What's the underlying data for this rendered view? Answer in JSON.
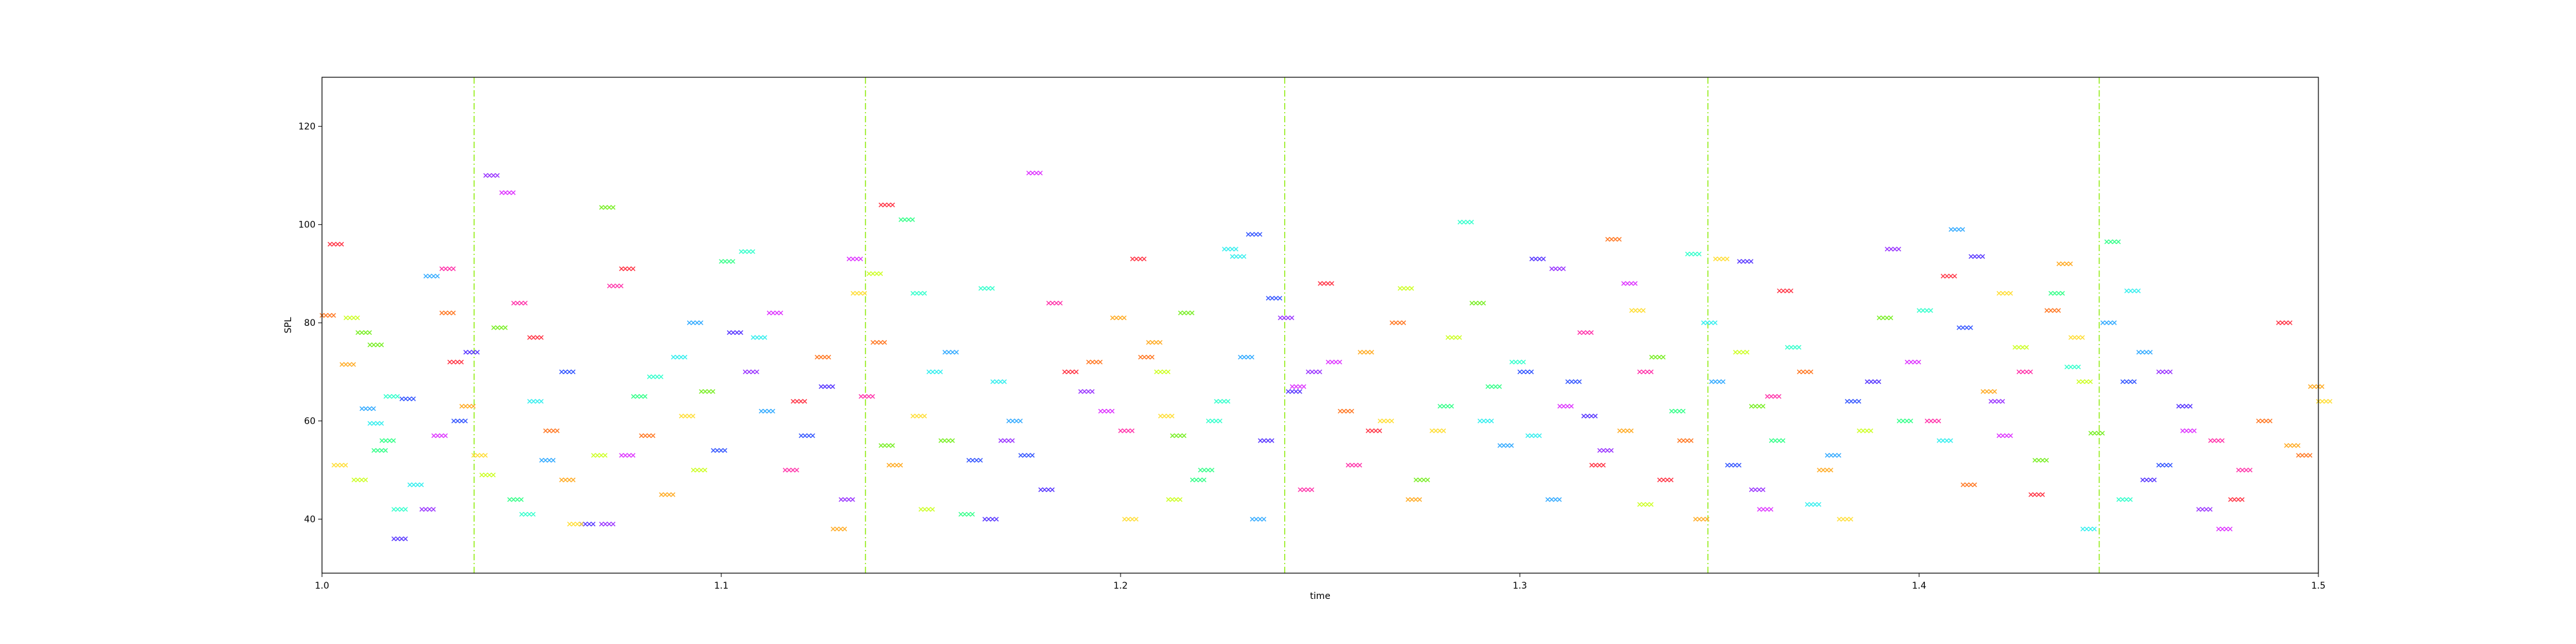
{
  "chart_data": {
    "type": "scatter",
    "marker": "x",
    "xlabel": "time",
    "ylabel": "SPL",
    "xlim": [
      1.0,
      1.5
    ],
    "ylim": [
      29,
      130
    ],
    "x_ticks": [
      1.0,
      1.1,
      1.2,
      1.3,
      1.4,
      1.5
    ],
    "x_tick_labels": [
      "1.0",
      "1.1",
      "1.2",
      "1.3",
      "1.4",
      "1.5"
    ],
    "y_ticks": [
      40,
      60,
      80,
      100,
      120
    ],
    "y_tick_labels": [
      "40",
      "60",
      "80",
      "100",
      "120"
    ],
    "grid": false,
    "legend": "none",
    "vertical_lines": {
      "x": [
        1.0381,
        1.1361,
        1.2411,
        1.3471,
        1.4451
      ],
      "color": "#99ee22",
      "style": "dash-dot"
    },
    "palette": [
      "#ff3344",
      "#ff7722",
      "#ffaa22",
      "#ffdd33",
      "#ccff22",
      "#77ee22",
      "#33ff88",
      "#33ffcc",
      "#33eeee",
      "#33aaff",
      "#3355ff",
      "#5533ff",
      "#9933ff",
      "#dd33ff",
      "#ff33aa"
    ],
    "series": [
      {
        "points": [
          [
            1.002,
            96
          ],
          [
            1.0,
            81.5
          ],
          [
            1.005,
            71.5
          ],
          [
            1.003,
            51
          ],
          [
            1.008,
            48
          ],
          [
            1.012,
            75.5
          ],
          [
            1.015,
            56
          ],
          [
            1.018,
            42
          ],
          [
            1.012,
            59.5
          ],
          [
            1.01,
            62.5
          ],
          [
            1.02,
            64.5
          ],
          [
            1.018,
            36
          ],
          [
            1.025,
            42
          ],
          [
            1.028,
            57
          ],
          [
            1.03,
            91
          ],
          [
            1.032,
            72
          ],
          [
            1.03,
            82
          ],
          [
            1.035,
            63
          ],
          [
            1.038,
            53
          ],
          [
            1.04,
            49
          ],
          [
            1.043,
            79
          ],
          [
            1.047,
            44
          ],
          [
            1.05,
            41
          ],
          [
            1.052,
            64
          ],
          [
            1.055,
            52
          ],
          [
            1.06,
            70
          ],
          [
            1.065,
            39
          ],
          [
            1.07,
            39
          ],
          [
            1.075,
            53
          ],
          [
            1.072,
            87.5
          ],
          [
            1.075,
            91
          ],
          [
            1.08,
            57
          ],
          [
            1.085,
            45
          ],
          [
            1.09,
            61
          ],
          [
            1.093,
            50
          ],
          [
            1.095,
            66
          ],
          [
            1.1,
            92.5
          ],
          [
            1.105,
            94.5
          ],
          [
            1.108,
            77
          ],
          [
            1.11,
            62
          ],
          [
            1.12,
            57
          ],
          [
            1.125,
            67
          ],
          [
            1.13,
            44
          ],
          [
            1.132,
            93
          ],
          [
            1.135,
            65
          ],
          [
            1.14,
            104
          ],
          [
            1.138,
            76
          ],
          [
            1.142,
            51
          ],
          [
            1.148,
            61
          ],
          [
            1.15,
            42
          ],
          [
            1.155,
            56
          ],
          [
            1.16,
            41
          ],
          [
            1.165,
            87
          ],
          [
            1.168,
            68
          ],
          [
            1.172,
            60
          ],
          [
            1.175,
            53
          ],
          [
            1.18,
            46
          ],
          [
            1.19,
            66
          ],
          [
            1.195,
            62
          ],
          [
            1.2,
            58
          ],
          [
            1.203,
            93
          ],
          [
            1.205,
            73
          ],
          [
            1.207,
            76
          ],
          [
            1.21,
            61
          ],
          [
            1.212,
            44
          ],
          [
            1.215,
            82
          ],
          [
            1.22,
            50
          ],
          [
            1.222,
            60
          ],
          [
            1.226,
            95
          ],
          [
            1.23,
            73
          ],
          [
            1.232,
            98
          ],
          [
            1.235,
            56
          ],
          [
            1.24,
            81
          ],
          [
            1.243,
            67
          ],
          [
            1.245,
            46
          ],
          [
            1.25,
            88
          ],
          [
            1.255,
            62
          ],
          [
            1.26,
            74
          ],
          [
            1.265,
            60
          ],
          [
            1.27,
            87
          ],
          [
            1.274,
            48
          ],
          [
            1.28,
            63
          ],
          [
            1.285,
            100.5
          ],
          [
            1.29,
            60
          ],
          [
            1.295,
            55
          ],
          [
            1.3,
            70
          ],
          [
            1.303,
            93
          ],
          [
            1.308,
            91
          ],
          [
            1.31,
            63
          ],
          [
            1.315,
            78
          ],
          [
            1.318,
            51
          ],
          [
            1.322,
            97
          ],
          [
            1.325,
            58
          ],
          [
            1.328,
            82.5
          ],
          [
            1.33,
            43
          ],
          [
            1.333,
            73
          ],
          [
            1.338,
            62
          ],
          [
            1.342,
            94
          ],
          [
            1.346,
            80
          ],
          [
            1.348,
            68
          ],
          [
            1.352,
            51
          ],
          [
            1.355,
            92.5
          ],
          [
            1.358,
            46
          ],
          [
            1.36,
            42
          ],
          [
            1.362,
            65
          ],
          [
            1.365,
            86.5
          ],
          [
            1.37,
            70
          ],
          [
            1.375,
            50
          ],
          [
            1.38,
            40
          ],
          [
            1.385,
            58
          ],
          [
            1.39,
            81
          ],
          [
            1.395,
            60
          ],
          [
            1.4,
            82.5
          ],
          [
            1.405,
            56
          ],
          [
            1.408,
            99
          ],
          [
            1.41,
            79
          ],
          [
            1.413,
            93.5
          ],
          [
            1.418,
            64
          ],
          [
            1.42,
            57
          ],
          [
            1.425,
            70
          ],
          [
            1.428,
            45
          ],
          [
            1.432,
            82.5
          ],
          [
            1.435,
            92
          ],
          [
            1.438,
            77
          ],
          [
            1.44,
            68
          ],
          [
            1.443,
            57.5
          ],
          [
            1.447,
            96.5
          ],
          [
            1.45,
            44
          ],
          [
            1.452,
            86.5
          ],
          [
            1.455,
            74
          ],
          [
            1.46,
            51
          ],
          [
            1.465,
            63
          ],
          [
            1.47,
            42
          ],
          [
            1.475,
            38
          ],
          [
            1.48,
            50
          ],
          [
            1.49,
            80
          ],
          [
            1.495,
            53
          ],
          [
            1.498,
            67
          ],
          [
            1.5,
            64
          ]
        ]
      },
      {
        "points": [
          [
            1.006,
            81
          ],
          [
            1.009,
            78
          ],
          [
            1.013,
            54
          ],
          [
            1.016,
            65
          ],
          [
            1.022,
            47
          ],
          [
            1.026,
            89.5
          ],
          [
            1.033,
            60
          ],
          [
            1.036,
            74
          ],
          [
            1.041,
            110
          ],
          [
            1.045,
            106.5
          ],
          [
            1.048,
            84
          ],
          [
            1.052,
            77
          ],
          [
            1.056,
            58
          ],
          [
            1.06,
            48
          ],
          [
            1.062,
            39
          ],
          [
            1.068,
            53
          ],
          [
            1.07,
            103.5
          ],
          [
            1.078,
            65
          ],
          [
            1.082,
            69
          ],
          [
            1.088,
            73
          ],
          [
            1.092,
            80
          ],
          [
            1.098,
            54
          ],
          [
            1.102,
            78
          ],
          [
            1.106,
            70
          ],
          [
            1.112,
            82
          ],
          [
            1.116,
            50
          ],
          [
            1.118,
            64
          ],
          [
            1.124,
            73
          ],
          [
            1.128,
            38
          ],
          [
            1.133,
            86
          ],
          [
            1.137,
            90
          ],
          [
            1.14,
            55
          ],
          [
            1.145,
            101
          ],
          [
            1.148,
            86
          ],
          [
            1.152,
            70
          ],
          [
            1.156,
            74
          ],
          [
            1.162,
            52
          ],
          [
            1.166,
            40
          ],
          [
            1.17,
            56
          ],
          [
            1.177,
            110.5
          ],
          [
            1.182,
            84
          ],
          [
            1.186,
            70
          ],
          [
            1.192,
            72
          ],
          [
            1.198,
            81
          ],
          [
            1.201,
            40
          ],
          [
            1.209,
            70
          ],
          [
            1.213,
            57
          ],
          [
            1.218,
            48
          ],
          [
            1.224,
            64
          ],
          [
            1.228,
            93.5
          ],
          [
            1.233,
            40
          ],
          [
            1.237,
            85
          ],
          [
            1.242,
            66
          ],
          [
            1.247,
            70
          ],
          [
            1.252,
            72
          ],
          [
            1.257,
            51
          ],
          [
            1.262,
            58
          ],
          [
            1.268,
            80
          ],
          [
            1.272,
            44
          ],
          [
            1.278,
            58
          ],
          [
            1.282,
            77
          ],
          [
            1.288,
            84
          ],
          [
            1.292,
            67
          ],
          [
            1.298,
            72
          ],
          [
            1.302,
            57
          ],
          [
            1.307,
            44
          ],
          [
            1.312,
            68
          ],
          [
            1.316,
            61
          ],
          [
            1.32,
            54
          ],
          [
            1.326,
            88
          ],
          [
            1.33,
            70
          ],
          [
            1.335,
            48
          ],
          [
            1.34,
            56
          ],
          [
            1.344,
            40
          ],
          [
            1.349,
            93
          ],
          [
            1.354,
            74
          ],
          [
            1.358,
            63
          ],
          [
            1.363,
            56
          ],
          [
            1.367,
            75
          ],
          [
            1.372,
            43
          ],
          [
            1.377,
            53
          ],
          [
            1.382,
            64
          ],
          [
            1.387,
            68
          ],
          [
            1.392,
            95
          ],
          [
            1.397,
            72
          ],
          [
            1.402,
            60
          ],
          [
            1.406,
            89.5
          ],
          [
            1.411,
            47
          ],
          [
            1.416,
            66
          ],
          [
            1.42,
            86
          ],
          [
            1.424,
            75
          ],
          [
            1.429,
            52
          ],
          [
            1.433,
            86
          ],
          [
            1.437,
            71
          ],
          [
            1.441,
            38
          ],
          [
            1.446,
            80
          ],
          [
            1.451,
            68
          ],
          [
            1.456,
            48
          ],
          [
            1.46,
            70
          ],
          [
            1.466,
            58
          ],
          [
            1.473,
            56
          ],
          [
            1.478,
            44
          ],
          [
            1.485,
            60
          ],
          [
            1.492,
            55
          ]
        ]
      }
    ]
  }
}
